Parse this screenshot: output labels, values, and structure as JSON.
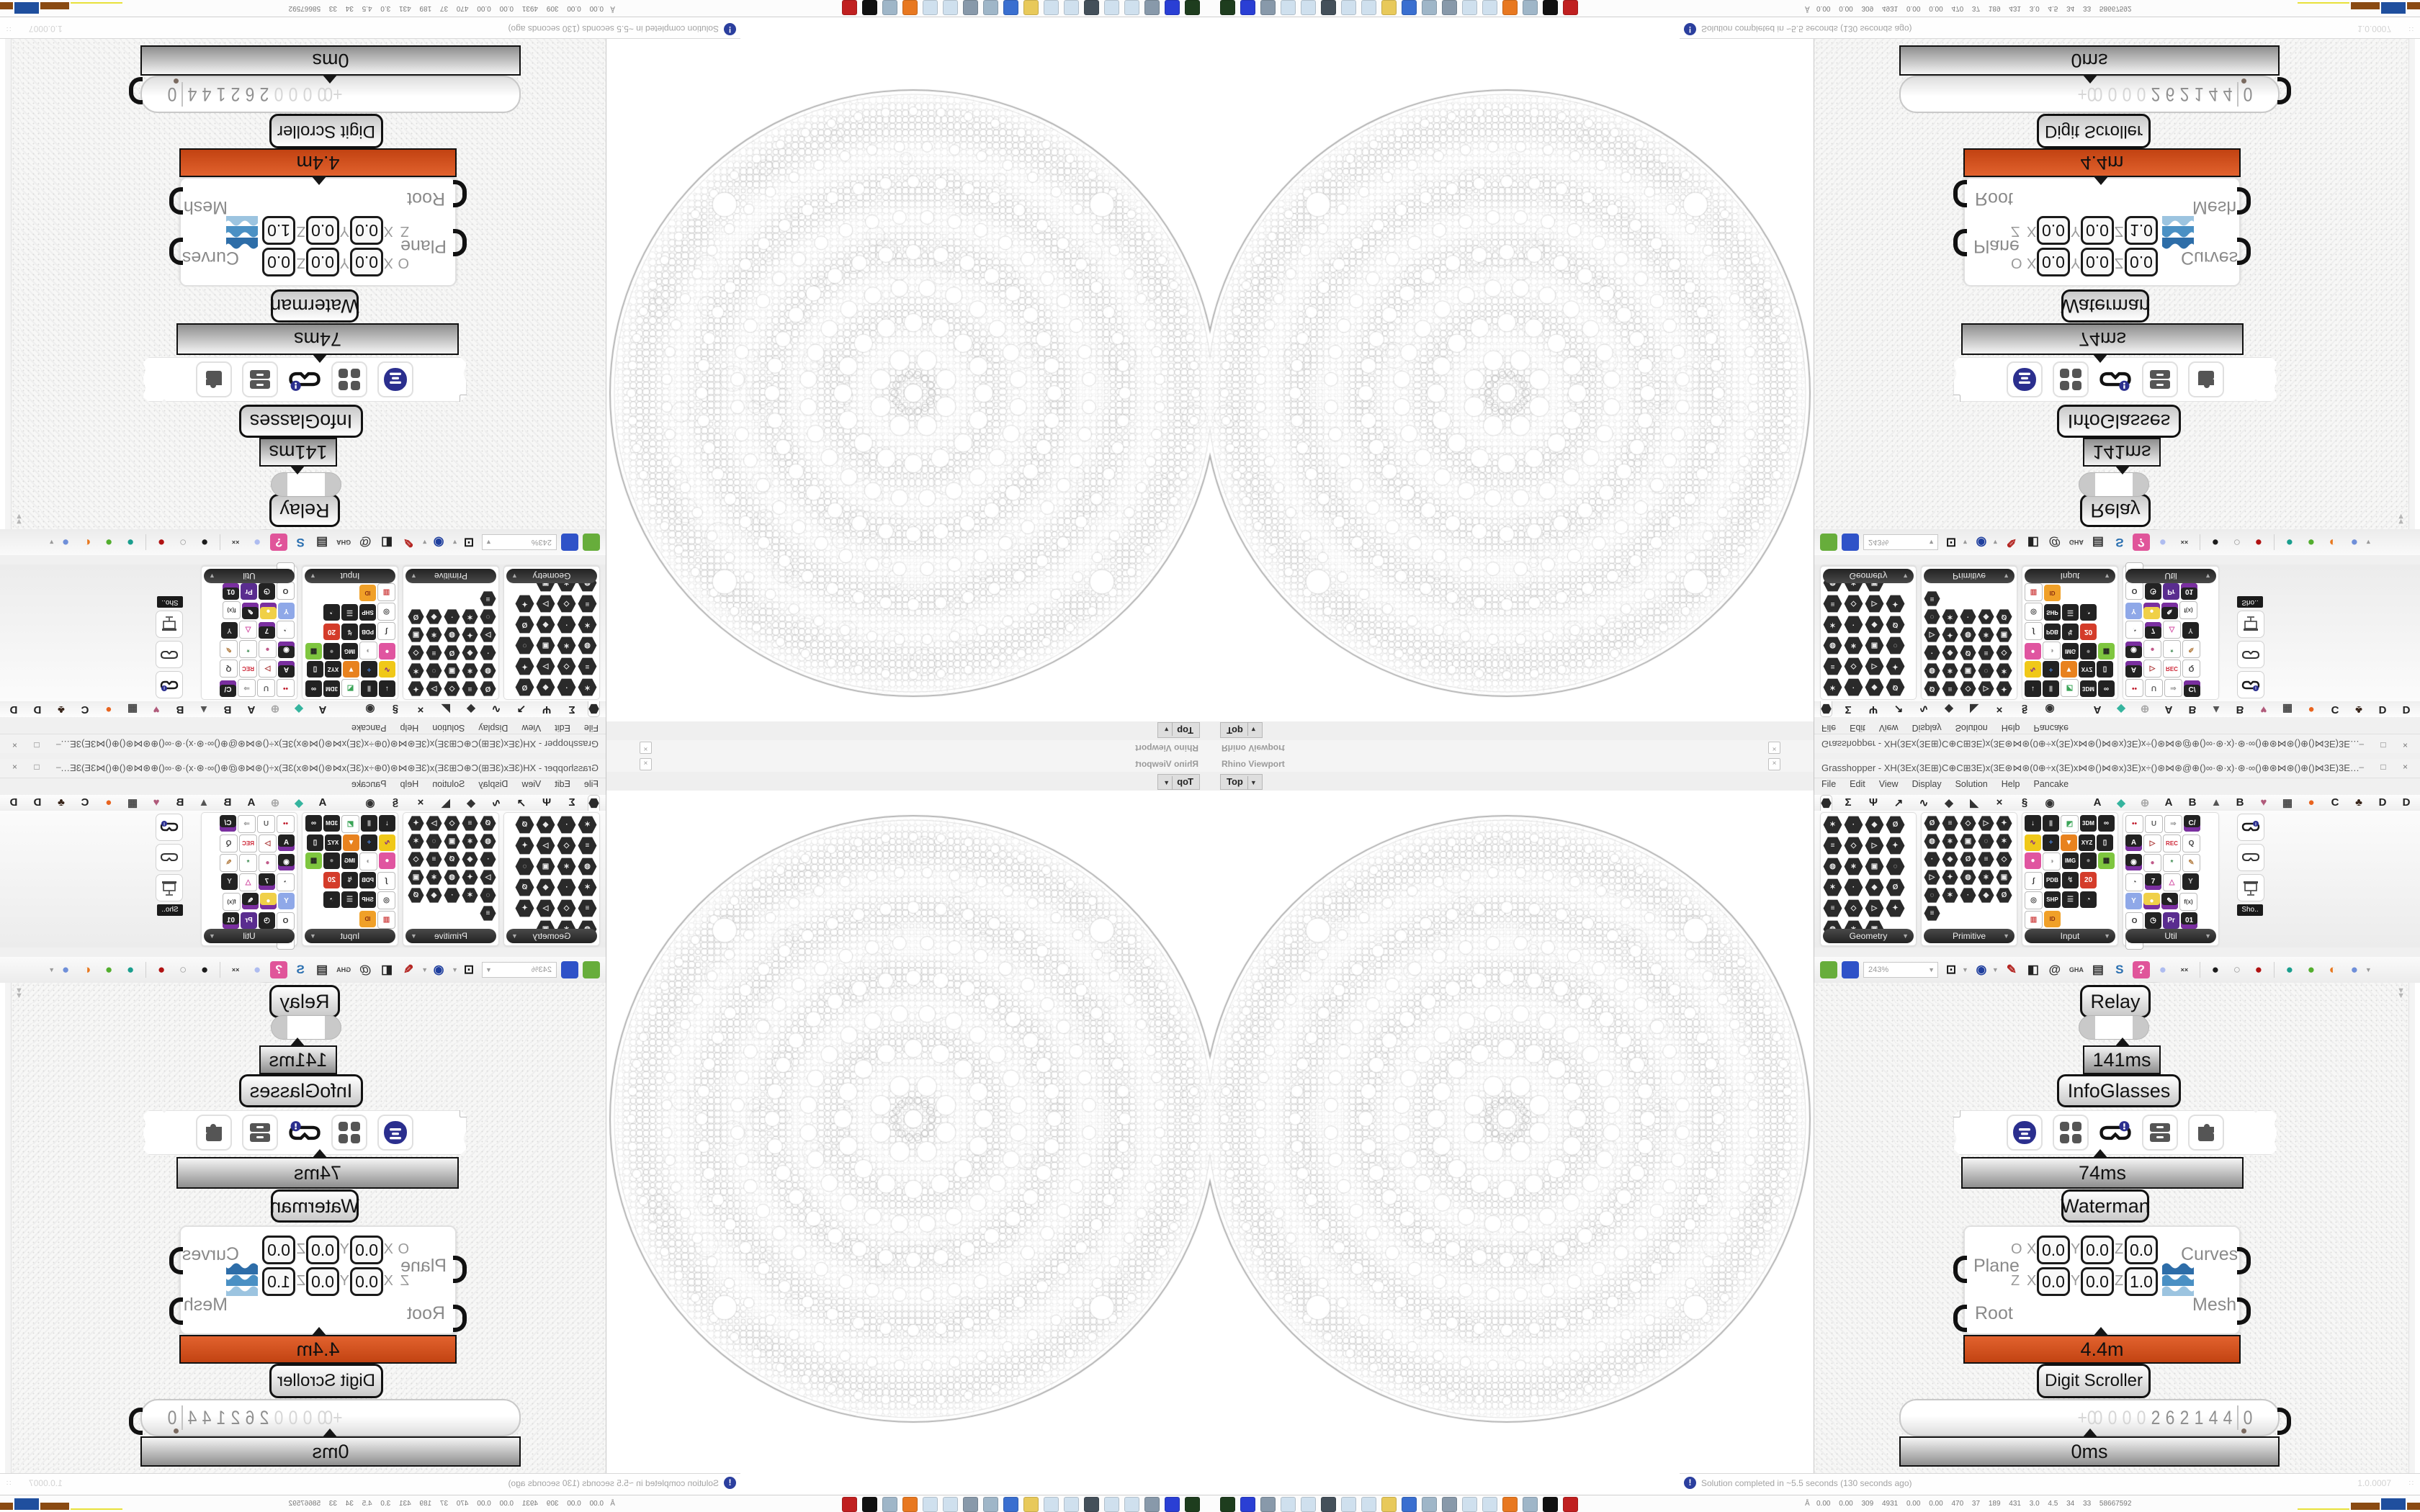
{
  "accent_colors": {
    "profiler_orange": "#c24312",
    "wire_gray": "#d4d4d4",
    "navy": "#2b2f8e"
  },
  "rhino": {
    "panel_title": "Rhino Viewport",
    "tab": "Top",
    "tab_caret": "▼",
    "close_glyph": "×"
  },
  "gh": {
    "title": "Grasshopper - XH(3Ex(3E⊞)C⊕C⊞3E)x(3E⊛⋈⊛(0⊕÷x(3E)x⋈⊛()⋈⊛x)3E)x÷()⊛⋈⊛@⊕()∞·⊛·x)·⊛·∞()⊕⊛⋈⊛()⊕()⋈3E)3E⋈()⊕()⋈⊛@⊕()∞·⊛x)⊛∞()⊕⊛⋈⊛(0÷+x(3E)x⋈(0...",
    "window_buttons": "–  □  ×",
    "menu": [
      "File",
      "Edit",
      "View",
      "Display",
      "Solution",
      "Help",
      "Pancake"
    ],
    "tabs_glyphs": [
      {
        "t": "Σ",
        "c": "#222"
      },
      {
        "t": "Ψ",
        "c": "#222"
      },
      {
        "t": "↗",
        "c": "#222"
      },
      {
        "t": "∿",
        "c": "#222"
      },
      {
        "t": "◆",
        "c": "#333"
      },
      {
        "t": "◣",
        "c": "#333"
      },
      {
        "t": "×",
        "c": "#222"
      },
      {
        "t": "§",
        "c": "#222"
      },
      {
        "t": "◉",
        "c": "#333"
      }
    ],
    "tabs_letters": [
      {
        "t": "A",
        "c": "#222"
      },
      {
        "t": "◆",
        "c": "#35b49e"
      },
      {
        "t": "⊕",
        "c": "#aaa"
      },
      {
        "t": "A",
        "c": "#222"
      },
      {
        "t": "B",
        "c": "#222"
      },
      {
        "t": "▲",
        "c": "#555"
      },
      {
        "t": "B",
        "c": "#222"
      },
      {
        "t": "♥",
        "c": "#b05a7a"
      },
      {
        "t": "▦",
        "c": "#444"
      },
      {
        "t": "●",
        "c": "#e8641f"
      },
      {
        "t": "C",
        "c": "#222"
      },
      {
        "t": "♣",
        "c": "#38251a"
      },
      {
        "t": "D",
        "c": "#222"
      },
      {
        "t": "D",
        "c": "#222"
      },
      {
        "t": "E",
        "c": "#222"
      },
      {
        "t": "E",
        "c": "#222"
      },
      {
        "t": "▩",
        "c": "#555"
      },
      {
        "t": "E",
        "c": "#222"
      }
    ],
    "palette": [
      {
        "label": "Geometry",
        "dark_count": 23,
        "tiles": []
      },
      {
        "label": "Primitive",
        "dark_count": 26,
        "tiles": []
      },
      {
        "label": "Input",
        "dark_count": 0,
        "tiles": [
          {
            "t": "↓",
            "bg": "#222",
            "fg": "#fff"
          },
          {
            "t": "▮",
            "bg": "#222",
            "fg": "#999"
          },
          {
            "t": "◩",
            "bg": "#fff",
            "fg": "#3aa457",
            "border": true
          },
          {
            "t": "3DM",
            "bg": "#222",
            "fg": "#fff",
            "chipl": true
          },
          {
            "t": "∞",
            "bg": "#222",
            "fg": "#fff"
          },
          {
            "t": "∿",
            "bg": "#f0c818",
            "fg": "#7a1f8f"
          },
          {
            "t": "+",
            "bg": "#222",
            "fg": "#4a7fd0"
          },
          {
            "t": "▼",
            "bg": "#e8821e",
            "fg": "#fff"
          },
          {
            "t": "XYZ",
            "bg": "#222",
            "fg": "#fff",
            "chipl": true
          },
          {
            "t": "▯",
            "bg": "#222",
            "fg": "#fff"
          },
          {
            "t": "●",
            "bg": "#e055a0",
            "fg": "#fff"
          },
          {
            "t": "◑",
            "bg": "#fff",
            "fg": "#999",
            "border": true
          },
          {
            "t": "IMG",
            "bg": "#222",
            "fg": "#fff",
            "chipl": true
          },
          {
            "t": "●",
            "bg": "#222",
            "fg": "#888"
          },
          {
            "t": "▦",
            "bg": "#7ec63f",
            "fg": "#222"
          },
          {
            "t": "∫",
            "bg": "#fff",
            "fg": "#333",
            "border": true
          },
          {
            "t": "PDB",
            "bg": "#222",
            "fg": "#fff",
            "chipl": true
          },
          {
            "t": "↯",
            "bg": "#222",
            "fg": "#ccc"
          },
          {
            "t": "20",
            "bg": "#d43c2a",
            "fg": "#fff"
          },
          {
            "t": "◎",
            "bg": "#fff",
            "fg": "#444",
            "border": true
          },
          {
            "t": "SHP",
            "bg": "#222",
            "fg": "#fff",
            "chipl": true
          },
          {
            "t": "☰",
            "bg": "#222",
            "fg": "#ccc"
          },
          {
            "t": "◔",
            "bg": "#222",
            "fg": "#fff"
          },
          {
            "t": "▥",
            "bg": "#fff",
            "fg": "#d04545",
            "border": true
          },
          {
            "t": "ID",
            "bg": "#f0a028",
            "fg": "#8a2f12",
            "chipl": true
          }
        ]
      },
      {
        "label": "Util",
        "dark_count": 0,
        "tiles": [
          {
            "t": "••",
            "bg": "#fff",
            "fg": "#c01f2f",
            "border": true
          },
          {
            "t": "U",
            "bg": "#fff",
            "fg": "#666",
            "border": true
          },
          {
            "t": "⇒",
            "bg": "#fff",
            "fg": "#999",
            "border": true
          },
          {
            "t": "C/",
            "bg": "#222",
            "fg": "#fff",
            "purple": true
          },
          {
            "t": "A",
            "bg": "#222",
            "fg": "#fff",
            "purple": true
          },
          {
            "t": "▷",
            "bg": "#fff",
            "fg": "#a83030",
            "border": true
          },
          {
            "t": "REC",
            "bg": "#fff",
            "fg": "#c23",
            "border": true,
            "chipl": true
          },
          {
            "t": "Q",
            "bg": "#fff",
            "fg": "#444",
            "border": true
          },
          {
            "t": "◉",
            "bg": "#222",
            "fg": "#fff",
            "purple": true
          },
          {
            "t": "●",
            "bg": "#fff",
            "fg": "#c05a8a",
            "border": true
          },
          {
            "t": "*",
            "bg": "#fff",
            "fg": "#3a8a4f",
            "border": true
          },
          {
            "t": "✎",
            "bg": "#fff",
            "fg": "#b8864f",
            "border": true
          },
          {
            "t": "◔",
            "bg": "#fff",
            "fg": "#444",
            "border": true
          },
          {
            "t": "7",
            "bg": "#222",
            "fg": "#fff",
            "purple": true
          },
          {
            "t": "△",
            "bg": "#fff",
            "fg": "#d048a0",
            "border": true
          },
          {
            "t": "Y",
            "bg": "#222",
            "fg": "#ccc"
          },
          {
            "t": "Y",
            "bg": "#8fa8e8",
            "fg": "#fff"
          },
          {
            "t": "●",
            "bg": "#f0d048",
            "fg": "#fff",
            "purple": true
          },
          {
            "t": "✎",
            "bg": "#222",
            "fg": "#fff",
            "purple": true
          },
          {
            "t": "f(x)",
            "bg": "#fff",
            "fg": "#444",
            "border": true,
            "chipl": true
          },
          {
            "t": "O",
            "bg": "#fff",
            "fg": "#333",
            "border": true
          },
          {
            "t": "◷",
            "bg": "#222",
            "fg": "#fff"
          },
          {
            "t": "Pr",
            "bg": "#5a2d8f",
            "fg": "#fff"
          },
          {
            "t": "01",
            "bg": "#222",
            "fg": "#fff",
            "purple": true
          },
          {
            "t": "ABC",
            "bg": "#fff",
            "fg": "#333",
            "border": true,
            "chipl": true
          }
        ]
      }
    ],
    "sho": {
      "label": "Sho.."
    },
    "toolbar": {
      "zoom": "243%",
      "items": [
        {
          "t": "",
          "bg": "#67ad3b",
          "name": "open-file-icon"
        },
        {
          "t": "",
          "bg": "#2f52c8",
          "name": "save-file-icon"
        },
        {
          "zoomfield": true
        },
        {
          "t": "⊡",
          "c": "#111",
          "caret": true,
          "name": "zoom-extents-icon"
        },
        {
          "t": "◉",
          "c": "#1f3f9e",
          "caret": true,
          "name": "view-eye-icon"
        },
        {
          "t": "✎",
          "c": "#b3231f",
          "name": "sketch-pen-icon"
        },
        {
          "t": "◧",
          "c": "#222",
          "name": "exposure-icon"
        },
        {
          "t": "@",
          "c": "#333",
          "name": "remote-icon"
        },
        {
          "t": "GHA",
          "c": "#444",
          "small": true,
          "name": "gha-icon"
        },
        {
          "t": "▤",
          "c": "#333",
          "name": "history-window-icon"
        },
        {
          "t": "S",
          "c": "#2a6fb0",
          "name": "finder-icon"
        },
        {
          "t": "?",
          "c": "#fff",
          "bg": "#e0559a",
          "name": "help-box-icon"
        },
        {
          "t": "●",
          "c": "#aebcf0",
          "name": "balloon-icon"
        },
        {
          "t": "××",
          "c": "#333",
          "small": true,
          "name": "ribbons-icon"
        },
        {
          "sep": true
        },
        {
          "t": "●",
          "c": "#1c1c1c",
          "name": "gem-dark-icon"
        },
        {
          "t": "○",
          "c": "#9a9a9a",
          "name": "gem-wire-icon"
        },
        {
          "t": "●",
          "c": "#b01212",
          "name": "gem-red-icon"
        },
        {
          "sep": true
        },
        {
          "t": "●",
          "c": "#1a9e8e",
          "name": "pin-teal-icon"
        },
        {
          "t": "●",
          "c": "#53ae2e",
          "name": "pin-green-icon"
        },
        {
          "t": "◐",
          "c": "#e8781f",
          "name": "sphere-orange-icon"
        },
        {
          "t": "●",
          "c": "#6f8fd9",
          "caret": true,
          "name": "preview-blue-icon"
        }
      ]
    },
    "status": {
      "message": "Solution completed in ~5.5 seconds (130 seconds ago)",
      "version": "1.0.0007"
    },
    "nodes": {
      "relay": "Relay",
      "t141": "141ms",
      "infoglasses": "InfoGlasses",
      "t74": "74ms",
      "waterman": {
        "label": "Waterman",
        "in1": "Plane",
        "in2": "Root",
        "out1": "Curves",
        "out2": "Mesh",
        "row1": {
          "axis": "O",
          "xl": "X",
          "x": "0.0",
          "yl": "Y",
          "y": "0.0",
          "zl": "Z",
          "z": "0.0"
        },
        "row2": {
          "axis": "Z",
          "xl": "X",
          "x": "0.0",
          "yl": "Y",
          "y": "0.0",
          "zl": "Z",
          "z": "1.0"
        }
      },
      "t44": "4.4m",
      "digit_scroller": "Digit Scroller",
      "digits_faint": [
        "+0",
        "0",
        "0",
        "0",
        "0"
      ],
      "digits_dark": [
        "2",
        "6",
        "2",
        "1",
        "4",
        "4"
      ],
      "digit_decimal": "0",
      "t0": "0ms"
    },
    "canvas_chevron": "▼"
  },
  "taskbar": {
    "tray_prefix": "Å",
    "tray_text": "0.00 0.00 309 4931 0.00 0.00 470 37 189 431 3.0 4.5 34 33 58667592",
    "icons": [
      "#1e3d1e",
      "#2a3fd4",
      "#8899aa",
      "#cfe0ee",
      "#cfe0ee",
      "#44505a",
      "#cfe0ee",
      "#cfe0ee",
      "#e8c95a",
      "#3a6fd0",
      "#9fb6c8",
      "#8899aa",
      "#cfe0ee",
      "#cfe0ee",
      "#e87820",
      "#9fb6c8",
      "#111111",
      "#c02020"
    ]
  }
}
